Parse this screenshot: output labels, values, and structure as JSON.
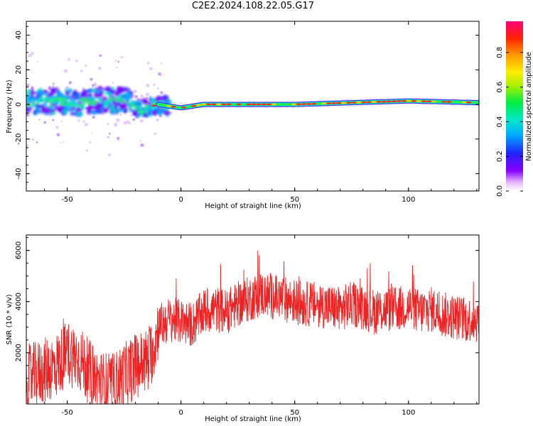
{
  "title": "C2E2.2024.108.22.05.G17",
  "colorbar": {
    "label": "Normalized spectral amplitude",
    "ticks": [
      "0.0",
      "0.2",
      "0.4",
      "0.6",
      "0.8"
    ]
  },
  "chart_data": [
    {
      "type": "heatmap",
      "xlabel": "Height of straight line (km)",
      "ylabel": "Frequency (Hz)",
      "xlim": [
        -68,
        131
      ],
      "ylim": [
        -50,
        48
      ],
      "xticks": [
        -50,
        0,
        50,
        100
      ],
      "yticks": [
        40,
        20,
        0,
        -20,
        -40
      ],
      "ridge": [
        {
          "x": -65,
          "y": 1.5
        },
        {
          "x": -55,
          "y": 2
        },
        {
          "x": -45,
          "y": 0.5
        },
        {
          "x": -35,
          "y": 2.5
        },
        {
          "x": -25,
          "y": 3
        },
        {
          "x": -18,
          "y": -3
        },
        {
          "x": -10,
          "y": 0
        },
        {
          "x": 0,
          "y": -2
        },
        {
          "x": 5,
          "y": -1
        },
        {
          "x": 10,
          "y": 0
        },
        {
          "x": 50,
          "y": 0
        },
        {
          "x": 100,
          "y": 2
        },
        {
          "x": 131,
          "y": 1
        }
      ]
    },
    {
      "type": "line",
      "xlabel": "Height of straight line (km)",
      "ylabel": "SNR (10 * v/v)",
      "xlim": [
        -68,
        131
      ],
      "ylim": [
        0,
        6600
      ],
      "xticks": [
        -50,
        0,
        50,
        100
      ],
      "yticks": [
        2000,
        4000,
        6000
      ],
      "color": "#ee2222",
      "series": [
        {
          "x": [
            -68,
            -60,
            -55,
            -50,
            -45,
            -40,
            -35,
            -30,
            -25,
            -20,
            -15,
            -12,
            -10,
            -5,
            0,
            5,
            10,
            15,
            20,
            25,
            30,
            35,
            40,
            45,
            50,
            55,
            60,
            65,
            70,
            75,
            80,
            85,
            90,
            95,
            100,
            105,
            110,
            115,
            120,
            125,
            131
          ],
          "y": [
            1000,
            1300,
            1500,
            2000,
            1800,
            1200,
            800,
            700,
            1100,
            1500,
            1700,
            2200,
            3000,
            3300,
            3200,
            3100,
            3600,
            3700,
            3600,
            3900,
            4100,
            4300,
            4200,
            4100,
            4000,
            3900,
            3900,
            3800,
            3700,
            3900,
            3800,
            3600,
            3700,
            3700,
            3800,
            3600,
            3700,
            3500,
            3400,
            3300,
            3300
          ]
        }
      ]
    }
  ]
}
